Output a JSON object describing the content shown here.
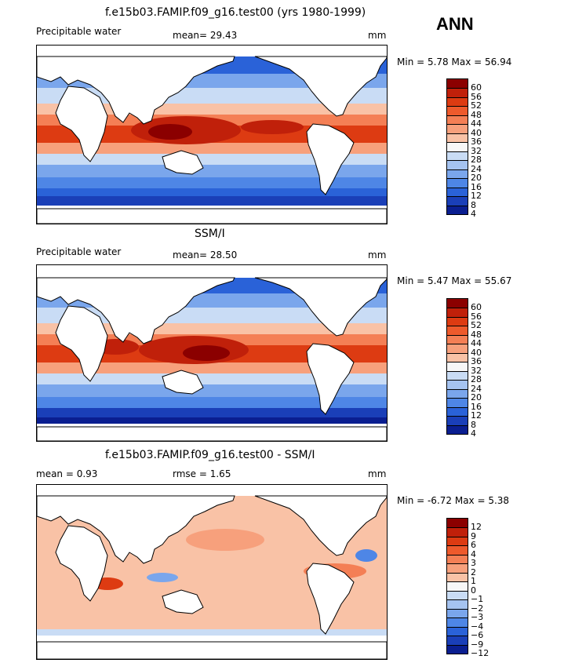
{
  "season_label": "ANN",
  "units": "mm",
  "panels": [
    {
      "title": "f.e15b03.FAMIP.f09_g16.test00 (yrs 1980-1999)",
      "left_label": "Precipitable water",
      "mid_label": "mean=   29.43",
      "right_label": "mm",
      "minmax": "Min =    5.78 Max =   56.94",
      "colorbar_levels": [
        "60",
        "56",
        "52",
        "48",
        "44",
        "40",
        "36",
        "32",
        "28",
        "24",
        "20",
        "16",
        "12",
        "8",
        "4"
      ]
    },
    {
      "title": "SSM/I",
      "left_label": "Precipitable water",
      "mid_label": "mean=   28.50",
      "right_label": "mm",
      "minmax": "Min =    5.47 Max =   55.67",
      "colorbar_levels": [
        "60",
        "56",
        "52",
        "48",
        "44",
        "40",
        "36",
        "32",
        "28",
        "24",
        "20",
        "16",
        "12",
        "8",
        "4"
      ]
    },
    {
      "title": "f.e15b03.FAMIP.f09_g16.test00 - SSM/I",
      "left_label": "mean =    0.93",
      "mid_label": "rmse =    1.65",
      "right_label": "mm",
      "minmax": "Min =   -6.72 Max =    5.38",
      "colorbar_levels": [
        "12",
        "9",
        "6",
        "4",
        "3",
        "2",
        "1",
        "0",
        "−1",
        "−2",
        "−3",
        "−4",
        "−6",
        "−9",
        "−12"
      ]
    }
  ],
  "colors": {
    "absolute_scale": [
      "#8b0000",
      "#c0200a",
      "#dd3b12",
      "#ee5a2c",
      "#f47f55",
      "#f7a07c",
      "#f9c2a6",
      "#f7f7f7",
      "#c9dcf5",
      "#a5c3f0",
      "#7aa6ec",
      "#4e86e6",
      "#2a62d8",
      "#1a3fb8",
      "#0a1e90"
    ],
    "diff_scale": [
      "#8b0000",
      "#c0200a",
      "#dd3b12",
      "#ee5a2c",
      "#f47f55",
      "#f7a07c",
      "#f9c2a6",
      "#f7f7f7",
      "#c9dcf5",
      "#a5c3f0",
      "#7aa6ec",
      "#4e86e6",
      "#2a62d8",
      "#1a3fb8",
      "#0a1e90"
    ],
    "land": "#ffffff",
    "coast": "#000000"
  }
}
